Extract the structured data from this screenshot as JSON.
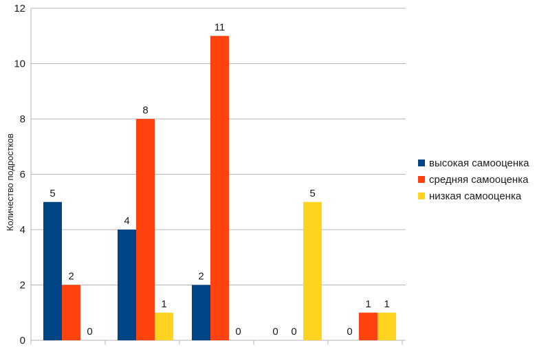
{
  "chart_data": {
    "type": "bar",
    "title": "",
    "xlabel": "",
    "ylabel": "Количество подростков",
    "ylim": [
      0,
      12
    ],
    "yticks": [
      0,
      2,
      4,
      6,
      8,
      10,
      12
    ],
    "categories": [
      "",
      "",
      "",
      "",
      ""
    ],
    "grid": true,
    "legend_position": "right",
    "series": [
      {
        "name": "высокая самооценка",
        "color": "#004586",
        "values": [
          5,
          4,
          2,
          0,
          0
        ]
      },
      {
        "name": "средняя самооценка",
        "color": "#ff420e",
        "values": [
          2,
          8,
          11,
          0,
          1
        ]
      },
      {
        "name": "низкая самооценка",
        "color": "#ffd320",
        "values": [
          0,
          1,
          0,
          5,
          1
        ]
      }
    ]
  }
}
